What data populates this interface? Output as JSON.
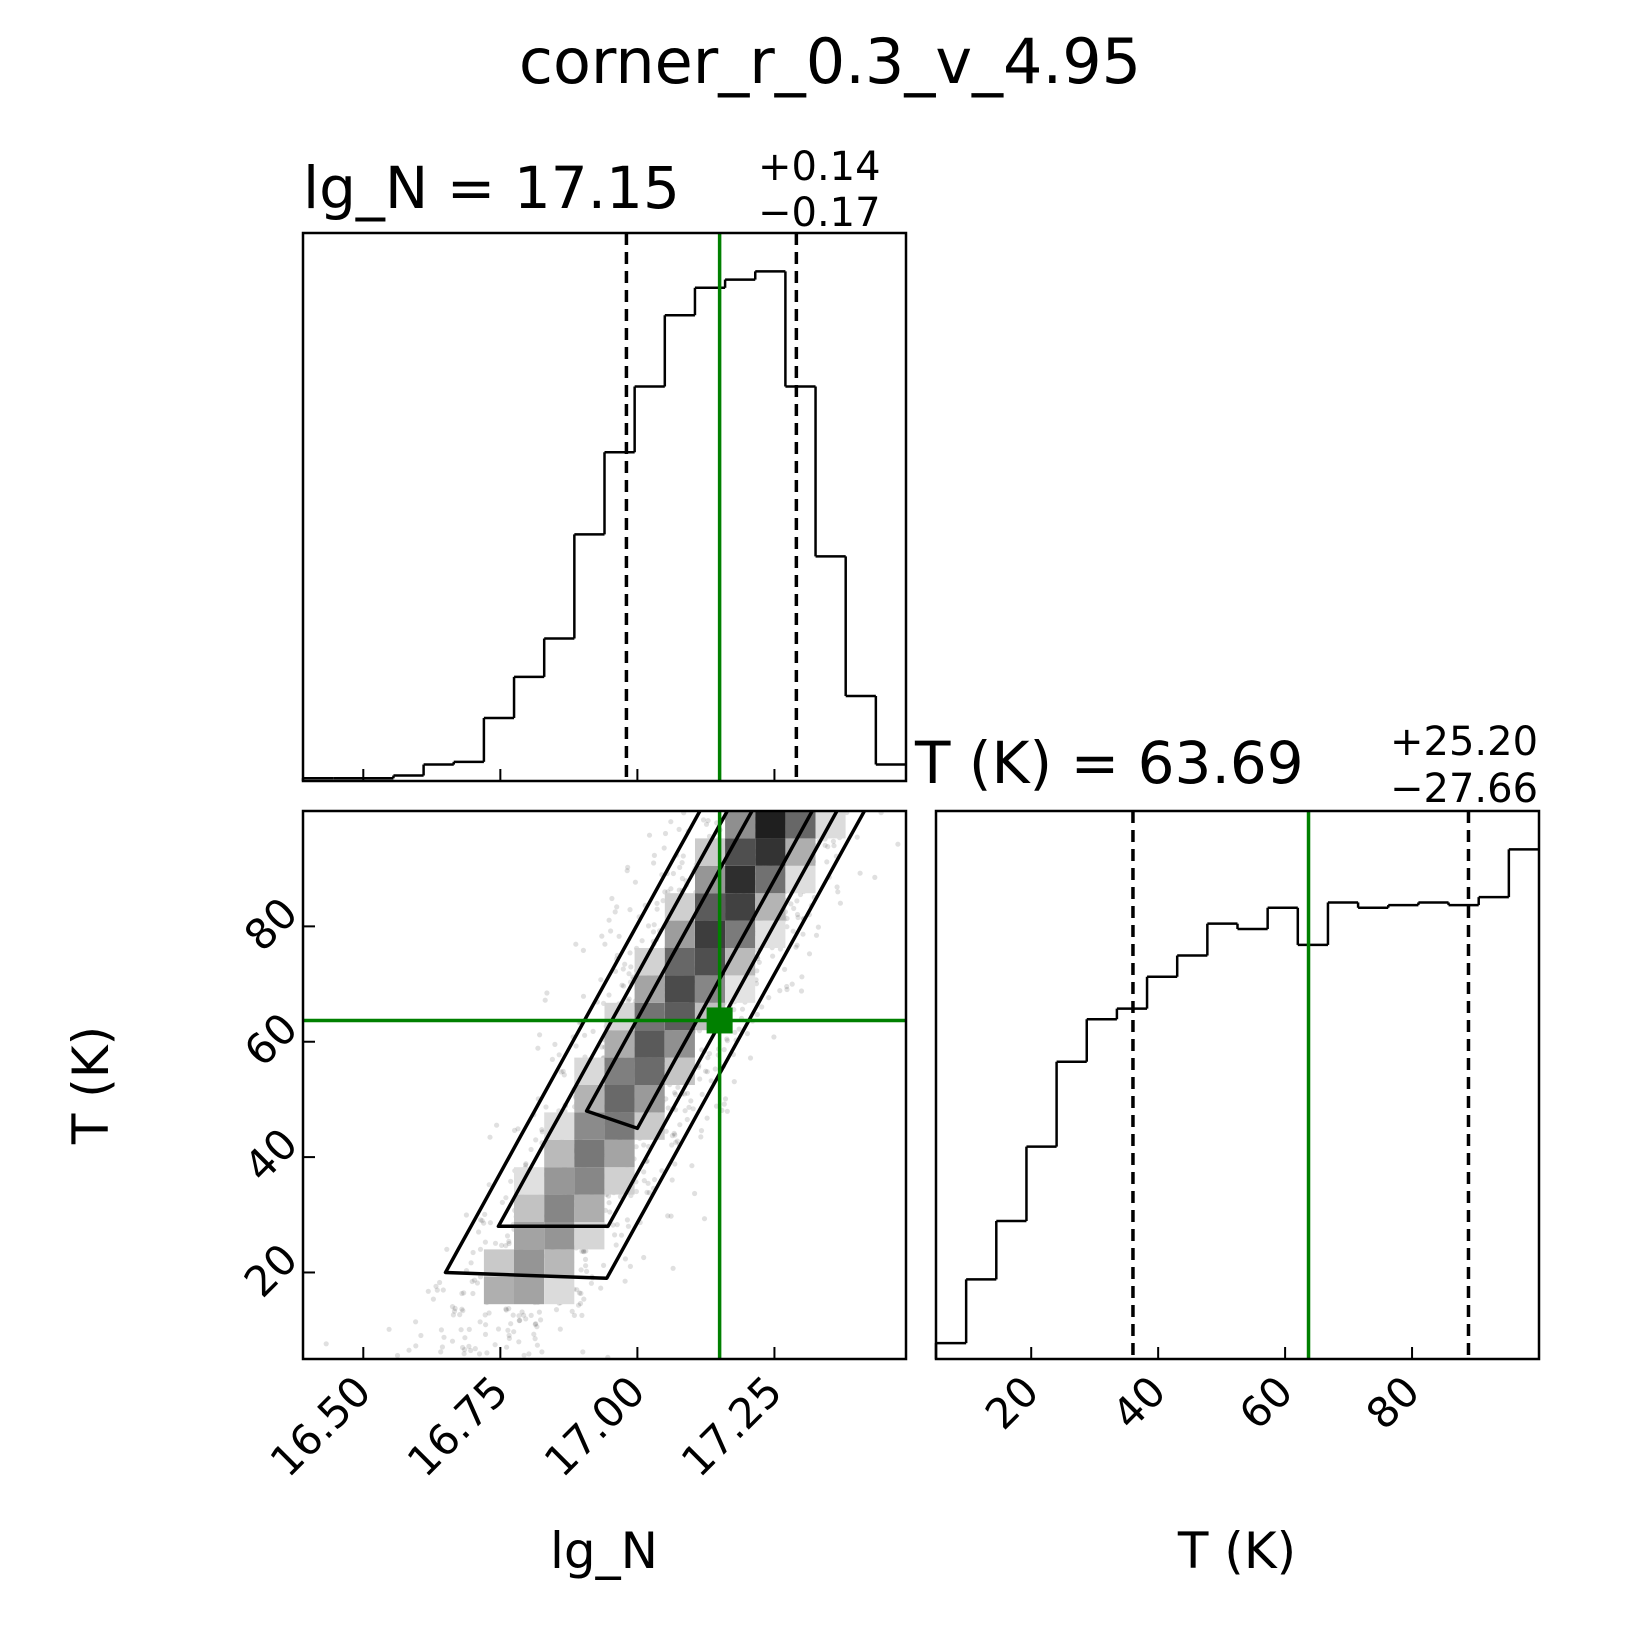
{
  "figure": {
    "title": "corner_r_0.3_v_4.95",
    "colors": {
      "truth": "#008000",
      "line": "#000000",
      "points": "#000000"
    }
  },
  "panels": {
    "lgN_title": {
      "name": "lg_N",
      "eq": " = ",
      "value": "17.15",
      "plus": "+0.14",
      "minus": "−0.17"
    },
    "T_title": {
      "name": "T (K)",
      "eq": " = ",
      "value": "63.69",
      "plus": "+25.20",
      "minus": "−27.66"
    },
    "xlabel_lgN": "lg_N",
    "xlabel_T": "T (K)",
    "ylabel_T": "T (K)",
    "lgN_ticks": [
      "16.50",
      "16.75",
      "17.00",
      "17.25"
    ],
    "T_ticks": [
      "20",
      "40",
      "60",
      "80"
    ]
  },
  "chart_data": [
    {
      "type": "histogram",
      "variable": "lg_N",
      "xlim": [
        16.39,
        17.49
      ],
      "bin_edges": [
        16.39,
        16.445,
        16.5,
        16.555,
        16.61,
        16.665,
        16.72,
        16.775,
        16.83,
        16.885,
        16.94,
        16.995,
        17.05,
        17.105,
        17.16,
        17.215,
        17.27,
        17.325,
        17.38,
        17.435,
        17.49
      ],
      "counts": [
        0.005,
        0.005,
        0.005,
        0.01,
        0.03,
        0.035,
        0.115,
        0.19,
        0.26,
        0.45,
        0.6,
        0.72,
        0.85,
        0.9,
        0.915,
        0.93,
        0.72,
        0.41,
        0.155,
        0.03
      ],
      "quantiles": [
        16.98,
        17.15,
        17.29
      ],
      "truth": 17.15
    },
    {
      "type": "histogram",
      "variable": "T (K)",
      "xlim": [
        5,
        100
      ],
      "bin_edges": [
        5,
        9.75,
        14.5,
        19.25,
        24,
        28.75,
        33.5,
        38.25,
        43,
        47.75,
        52.5,
        57.25,
        62,
        66.75,
        71.5,
        76.25,
        81,
        85.75,
        90.5,
        95.25,
        100
      ],
      "counts": [
        0.03,
        0.15,
        0.26,
        0.4,
        0.56,
        0.64,
        0.66,
        0.72,
        0.76,
        0.82,
        0.81,
        0.85,
        0.78,
        0.86,
        0.85,
        0.855,
        0.86,
        0.855,
        0.87,
        0.96
      ],
      "quantiles": [
        36.03,
        63.69,
        88.89
      ],
      "truth": 63.69
    },
    {
      "type": "scatter",
      "variables": [
        "lg_N",
        "T (K)"
      ],
      "xlim": [
        16.39,
        17.49
      ],
      "ylim": [
        5,
        100
      ],
      "truth": [
        17.15,
        63.69
      ],
      "contour_levels": 3,
      "ridge": {
        "x": [
          16.87,
          16.95,
          17.05,
          17.12,
          17.2,
          17.26
        ],
        "y": [
          20,
          35,
          52,
          65,
          80,
          98
        ]
      },
      "density_peak": [
        17.24,
        97
      ]
    }
  ]
}
